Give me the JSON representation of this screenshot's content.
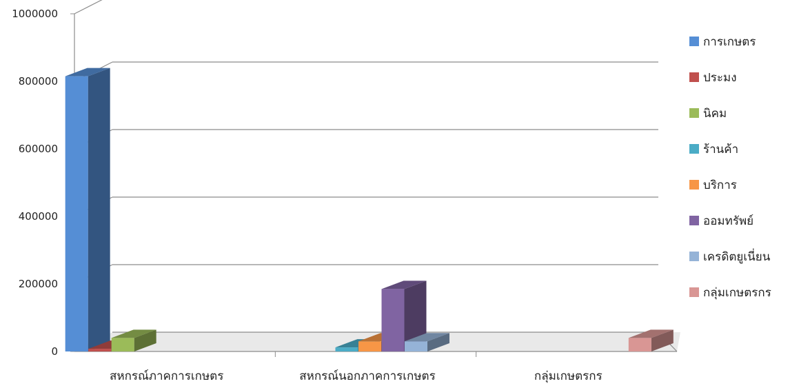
{
  "chart_data": {
    "type": "bar",
    "style": "3d-clustered-column",
    "title": "",
    "xlabel": "",
    "ylabel": "",
    "ylim": [
      0,
      1000000
    ],
    "yticks": [
      0,
      200000,
      400000,
      600000,
      800000,
      1000000
    ],
    "ytick_labels": [
      "0",
      "200000",
      "400000",
      "600000",
      "800000",
      "1000000"
    ],
    "grid": true,
    "legend_position": "right",
    "categories": [
      "สหกรณ์ภาคการเกษตร",
      "สหกรณ์นอกภาคการเกษตร",
      "กลุ่มเกษตรกร"
    ],
    "series": [
      {
        "name": "การเกษตร",
        "color": "#558ED5",
        "values": [
          815000,
          0,
          0
        ]
      },
      {
        "name": "ประมง",
        "color": "#C0504D",
        "values": [
          8000,
          0,
          0
        ]
      },
      {
        "name": "นิคม",
        "color": "#9BBB59",
        "values": [
          40000,
          0,
          0
        ]
      },
      {
        "name": "ร้านค้า",
        "color": "#4BACC6",
        "values": [
          0,
          12000,
          0
        ]
      },
      {
        "name": "บริการ",
        "color": "#F79646",
        "values": [
          0,
          30000,
          0
        ]
      },
      {
        "name": "ออมทรัพย์",
        "color": "#8064A2",
        "values": [
          0,
          185000,
          0
        ]
      },
      {
        "name": "เครดิตยูเนี่ยน",
        "color": "#95B3D7",
        "values": [
          0,
          30000,
          0
        ]
      },
      {
        "name": "กลุ่มเกษตรกร",
        "color": "#D99694",
        "values": [
          0,
          0,
          40000
        ]
      }
    ]
  }
}
